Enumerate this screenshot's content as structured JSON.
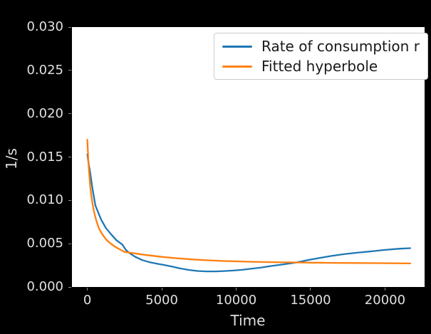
{
  "colors": {
    "figure_background": "#000000",
    "plot_background": "#ffffff",
    "tick_label": "#e0e0e0",
    "axis_label": "#dedede",
    "legend_border": "#cccccc",
    "legend_text": "#1a1a1a",
    "series_blue": "#1f77b4",
    "series_orange": "#ff7f0e"
  },
  "legend": {
    "entries": [
      {
        "label": "Rate of consumption r",
        "color": "#1f77b4"
      },
      {
        "label": "Fitted hyperbole",
        "color": "#ff7f0e"
      }
    ]
  },
  "chart_data": {
    "type": "line",
    "title": "",
    "xlabel": "Time",
    "ylabel": "1/s",
    "xlim": [
      -1035,
      22660
    ],
    "ylim": [
      0,
      0.03
    ],
    "grid": false,
    "legend_position": "upper right",
    "xticks": {
      "values": [
        0,
        5000,
        10000,
        15000,
        20000
      ],
      "labels": [
        "0",
        "5000",
        "10000",
        "15000",
        "20000"
      ]
    },
    "yticks": {
      "values": [
        0.0,
        0.005,
        0.01,
        0.015,
        0.02,
        0.025,
        0.03
      ],
      "labels": [
        "0.000",
        "0.005",
        "0.010",
        "0.015",
        "0.020",
        "0.025",
        "0.030"
      ]
    },
    "series": [
      {
        "name": "Rate of consumption r",
        "color": "#1f77b4",
        "x": [
          0,
          100,
          200,
          350,
          540,
          920,
          1250,
          1590,
          1950,
          2350,
          2600,
          2800,
          3200,
          3700,
          4200,
          4700,
          5200,
          5700,
          6200,
          6800,
          7400,
          8000,
          8600,
          9200,
          9800,
          10400,
          11000,
          11700,
          12400,
          13200,
          14000,
          14800,
          15600,
          16400,
          17200,
          18100,
          19000,
          20000,
          21000,
          21700
        ],
        "y": [
          0.0153,
          0.0141,
          0.0131,
          0.0113,
          0.0094,
          0.0078,
          0.0068,
          0.0061,
          0.0054,
          0.0049,
          0.00425,
          0.00395,
          0.0035,
          0.0031,
          0.00285,
          0.00268,
          0.00253,
          0.00235,
          0.00215,
          0.00197,
          0.00185,
          0.0018,
          0.0018,
          0.00184,
          0.0019,
          0.00198,
          0.0021,
          0.00225,
          0.00243,
          0.00262,
          0.00282,
          0.0031,
          0.00335,
          0.00358,
          0.00378,
          0.00395,
          0.0041,
          0.00428,
          0.00442,
          0.00448
        ]
      },
      {
        "name": "Fitted hyperbole",
        "color": "#ff7f0e",
        "x": [
          0,
          50,
          100,
          150,
          200,
          300,
          400,
          500,
          650,
          800,
          1000,
          1250,
          1500,
          1800,
          2100,
          2500,
          3000,
          3500,
          4000,
          5000,
          6000,
          7000,
          8000,
          9000,
          10000,
          11000,
          12000,
          13500,
          15000,
          16500,
          18000,
          19500,
          21700
        ],
        "y": [
          0.017,
          0.0151,
          0.0136,
          0.0125,
          0.0115,
          0.0101,
          0.0091,
          0.0083,
          0.0074,
          0.0067,
          0.0061,
          0.0055,
          0.0051,
          0.00472,
          0.00442,
          0.00405,
          0.00392,
          0.0038,
          0.00368,
          0.00348,
          0.00332,
          0.00319,
          0.00309,
          0.00301,
          0.00296,
          0.00291,
          0.00288,
          0.00284,
          0.00281,
          0.00279,
          0.00277,
          0.00275,
          0.00272
        ]
      }
    ]
  }
}
